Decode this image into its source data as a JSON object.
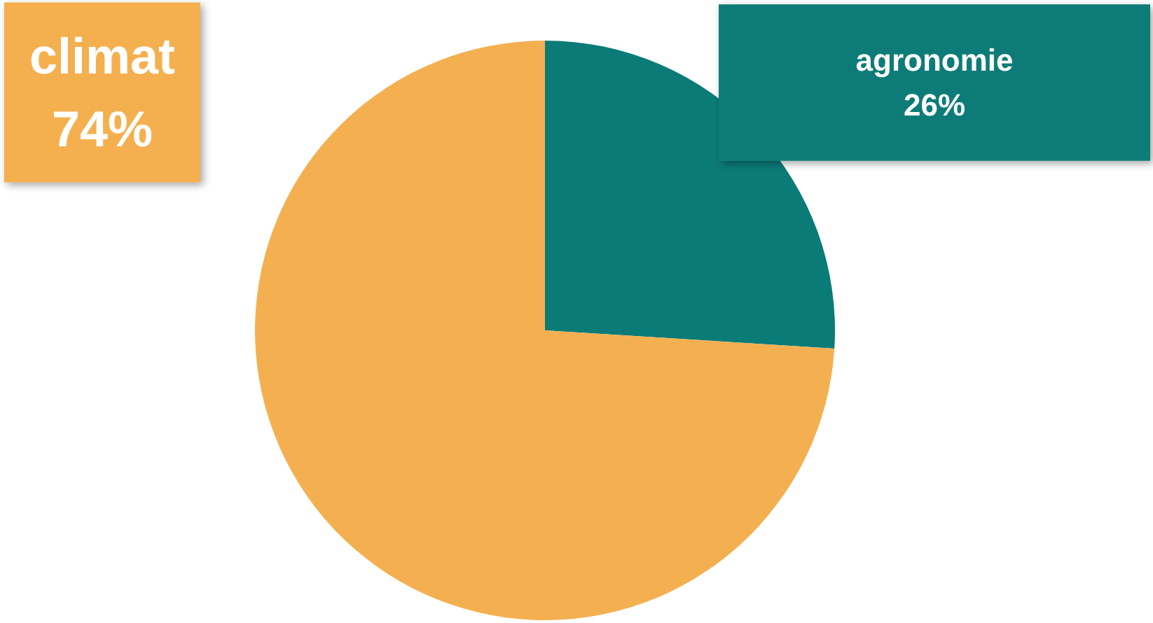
{
  "chart_data": {
    "type": "pie",
    "categories": [
      "agronomie",
      "climat"
    ],
    "values": [
      26,
      74
    ],
    "value_labels": [
      "26%",
      "74%"
    ],
    "colors": [
      "#0b7b78",
      "#f4b050"
    ],
    "legend": false
  }
}
